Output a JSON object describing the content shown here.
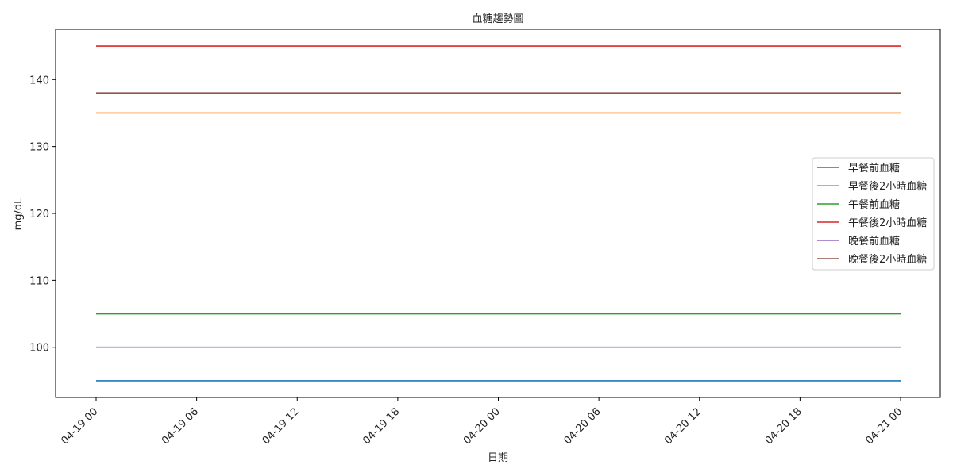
{
  "chart_data": {
    "type": "line",
    "title": "血糖趨勢圖",
    "xlabel": "日期",
    "ylabel": "mg/dL",
    "x_ticks": [
      "04-19 00",
      "04-19 06",
      "04-19 12",
      "04-19 18",
      "04-20 00",
      "04-20 06",
      "04-20 12",
      "04-20 18",
      "04-21 00"
    ],
    "x_range_hours": [
      0,
      48
    ],
    "y_ticks": [
      100,
      110,
      120,
      130,
      140
    ],
    "ylim": [
      92.5,
      147.5
    ],
    "grid": false,
    "legend_position": "center-right",
    "series": [
      {
        "name": "早餐前血糖",
        "color": "#1f77b4",
        "x_hours": [
          0,
          48
        ],
        "values": [
          95,
          95
        ]
      },
      {
        "name": "早餐後2小時血糖",
        "color": "#ff7f0e",
        "x_hours": [
          0,
          48
        ],
        "values": [
          135,
          135
        ]
      },
      {
        "name": "午餐前血糖",
        "color": "#2ca02c",
        "x_hours": [
          0,
          48
        ],
        "values": [
          105,
          105
        ]
      },
      {
        "name": "午餐後2小時血糖",
        "color": "#d62728",
        "x_hours": [
          0,
          48
        ],
        "values": [
          145,
          145
        ]
      },
      {
        "name": "晚餐前血糖",
        "color": "#9467bd",
        "x_hours": [
          0,
          48
        ],
        "values": [
          100,
          100
        ]
      },
      {
        "name": "晚餐後2小時血糖",
        "color": "#8c564b",
        "x_hours": [
          0,
          48
        ],
        "values": [
          138,
          138
        ]
      }
    ]
  }
}
